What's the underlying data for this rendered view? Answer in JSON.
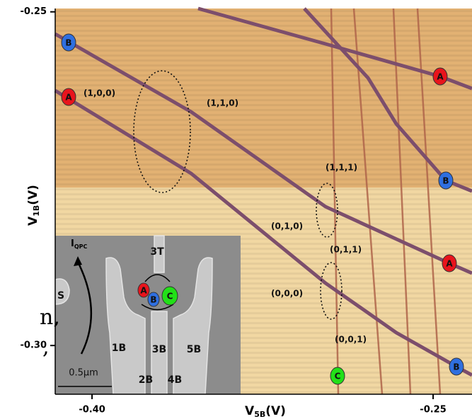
{
  "chart_data": {
    "type": "stability-diagram",
    "xlabel": {
      "main": "V",
      "sub": "5B",
      "unit": "(V)"
    },
    "ylabel": {
      "main": "V",
      "sub": "1B",
      "unit": "(V)"
    },
    "xlim": [
      -0.4162,
      -0.2329
    ],
    "ylim": [
      -0.3073,
      -0.2495
    ],
    "xticks": [
      {
        "value": -0.4,
        "label": "-0.40"
      },
      -0.25
    ],
    "yticks": [
      -0.25,
      {
        "value": -0.3,
        "label": "-0.30"
      }
    ],
    "annotations": [
      "(1,0,0)",
      "(1,1,0)",
      "(1,1,1)",
      "(0,1,0)",
      "(0,1,1)",
      "(0,0,0)",
      "(0,0,1)"
    ],
    "markers": [
      "B",
      "A",
      "A",
      "B",
      "A",
      "B",
      "C"
    ],
    "edge_text": [
      "n,",
      ","
    ],
    "inset": {
      "current": {
        "main": "I",
        "sub": "QPC"
      },
      "gates": [
        "3T",
        "S",
        "1B",
        "3B",
        "5B",
        "2B",
        "4B"
      ],
      "scale": "0.5µm",
      "dots": [
        "A",
        "B",
        "C"
      ]
    }
  }
}
